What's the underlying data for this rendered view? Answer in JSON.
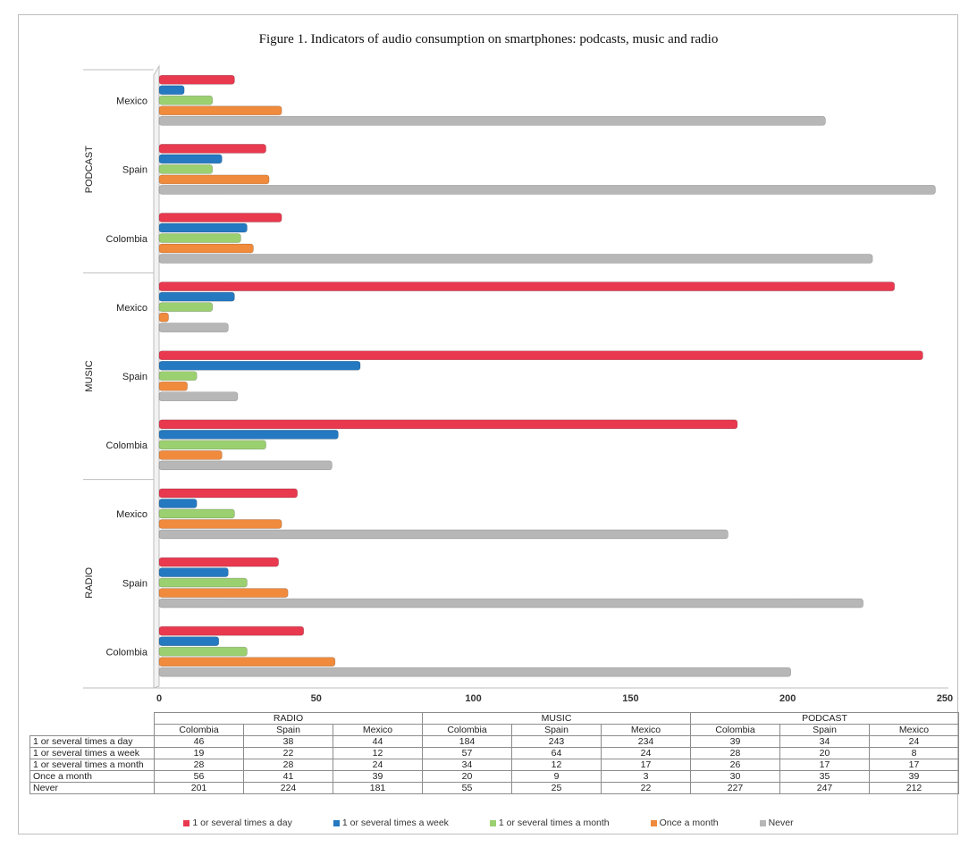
{
  "title": "Figure 1. Indicators of audio consumption on smartphones: podcasts, music and radio",
  "chart_data": {
    "type": "bar",
    "orientation": "horizontal",
    "title": "Figure 1. Indicators of audio consumption on smartphones: podcasts, music and radio",
    "xlim": [
      0,
      250
    ],
    "x_ticks": [
      "0",
      "50",
      "100",
      "150",
      "200",
      "250"
    ],
    "groups": [
      {
        "name": "RADIO",
        "countries": [
          "Colombia",
          "Spain",
          "Mexico"
        ]
      },
      {
        "name": "MUSIC",
        "countries": [
          "Colombia",
          "Spain",
          "Mexico"
        ]
      },
      {
        "name": "PODCAST",
        "countries": [
          "Colombia",
          "Spain",
          "Mexico"
        ]
      }
    ],
    "categories": [
      "RADIO Colombia",
      "RADIO Spain",
      "RADIO Mexico",
      "MUSIC Colombia",
      "MUSIC Spain",
      "MUSIC Mexico",
      "PODCAST Colombia",
      "PODCAST Spain",
      "PODCAST Mexico"
    ],
    "series": [
      {
        "name": "1 or several times a day",
        "color": "#e8394f",
        "values": [
          46,
          38,
          44,
          184,
          243,
          234,
          39,
          34,
          24
        ]
      },
      {
        "name": "1 or several times a week",
        "color": "#2479c1",
        "values": [
          19,
          22,
          12,
          57,
          64,
          24,
          28,
          20,
          8
        ]
      },
      {
        "name": "1 or several times a month",
        "color": "#9bd071",
        "values": [
          28,
          28,
          24,
          34,
          12,
          17,
          26,
          17,
          17
        ]
      },
      {
        "name": "Once a month",
        "color": "#f08a3c",
        "values": [
          56,
          41,
          39,
          20,
          9,
          3,
          30,
          35,
          39
        ]
      },
      {
        "name": "Never",
        "color": "#b7b7b7",
        "values": [
          201,
          224,
          181,
          55,
          25,
          22,
          227,
          247,
          212
        ]
      }
    ],
    "legend_position": "bottom",
    "grid": false
  },
  "table": {
    "group_headers": [
      "RADIO",
      "MUSIC",
      "PODCAST"
    ],
    "country_headers": [
      "Colombia",
      "Spain",
      "Mexico",
      "Colombia",
      "Spain",
      "Mexico",
      "Colombia",
      "Spain",
      "Mexico"
    ]
  },
  "legend_labels": [
    "1 or several times a day",
    "1 or several times a week",
    "1 or several times a month",
    "Once a month",
    "Never"
  ]
}
